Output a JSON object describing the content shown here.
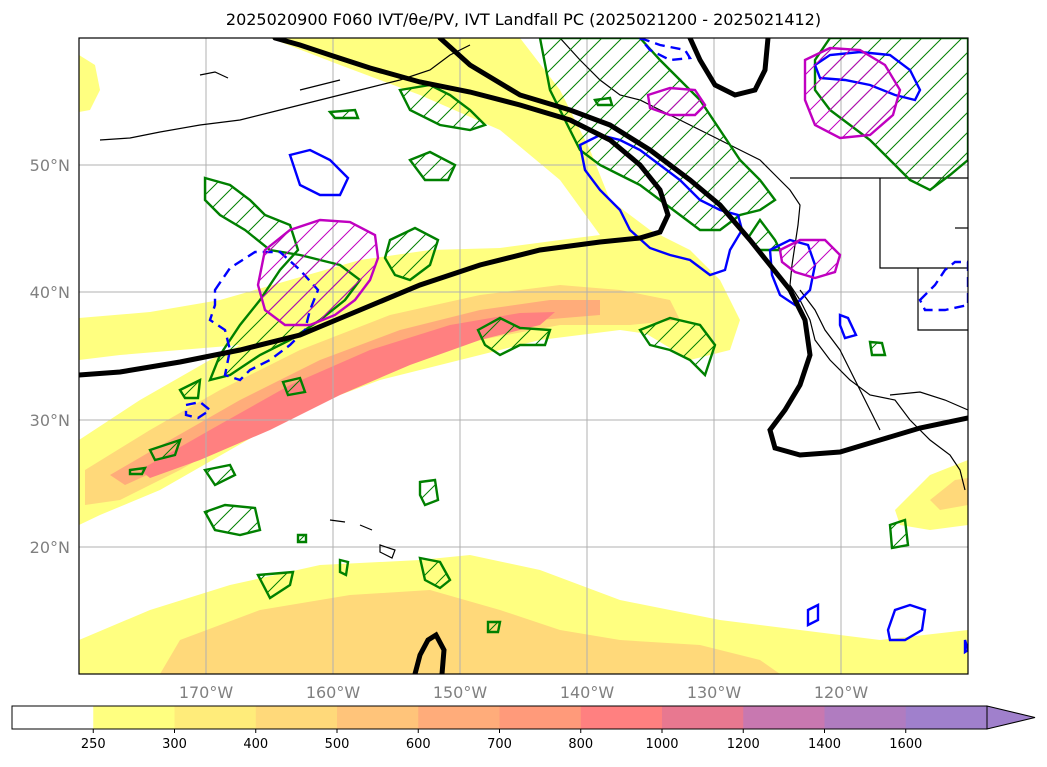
{
  "title": "2025020900 F060 IVT/θe/PV, IVT Landfall PC (2025021200 - 2025021412)",
  "map": {
    "lat_labels": [
      "50°N",
      "40°N",
      "30°N",
      "20°N"
    ],
    "lon_labels": [
      "170°W",
      "160°W",
      "150°W",
      "140°W",
      "130°W",
      "120°W"
    ],
    "grid_lats": [
      50,
      40,
      30,
      20
    ],
    "grid_lons": [
      -170,
      -160,
      -150,
      -140,
      -130,
      -120
    ],
    "extent": {
      "lon_min": -180,
      "lon_max": -110,
      "lat_min": 10,
      "lat_max": 60
    },
    "colors": {
      "grid": "#b0b0b0",
      "coast": "#000000",
      "contour_black": "#000000",
      "contour_green": "#008000",
      "contour_blue": "#0000ff",
      "contour_magenta": "#c000c0"
    }
  },
  "colorbar": {
    "ticks": [
      "250",
      "300",
      "400",
      "500",
      "600",
      "700",
      "800",
      "1000",
      "1200",
      "1400",
      "1600"
    ],
    "colors": [
      "#ffffff",
      "#ffff80",
      "#ffec7a",
      "#ffd97a",
      "#ffc47a",
      "#ffac7a",
      "#ff9a7a",
      "#ff8080",
      "#e87890",
      "#c878b0",
      "#b07cc0",
      "#a080cc"
    ],
    "extend": "max"
  }
}
